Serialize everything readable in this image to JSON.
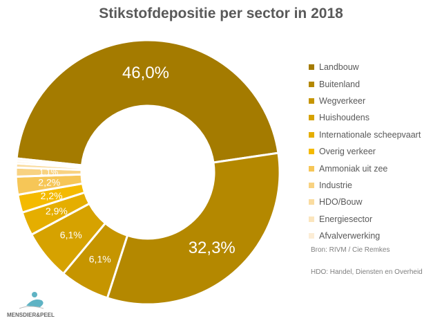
{
  "chart_data": {
    "type": "pie",
    "variant": "donut",
    "title": "Stikstofdepositie per sector in 2018",
    "legend_position": "right",
    "slices": [
      {
        "label": "Landbouw",
        "value": 46.0,
        "display": "46,0%",
        "color": "#a47b00"
      },
      {
        "label": "Buitenland",
        "value": 32.3,
        "display": "32,3%",
        "color": "#b48800"
      },
      {
        "label": "Wegverkeer",
        "value": 6.1,
        "display": "6,1%",
        "color": "#c69500"
      },
      {
        "label": "Huishoudens",
        "value": 6.1,
        "display": "6,1%",
        "color": "#d6a200"
      },
      {
        "label": "Internationale scheepvaart",
        "value": 2.9,
        "display": "2,9%",
        "color": "#e5ae00"
      },
      {
        "label": "Overig verkeer",
        "value": 2.2,
        "display": "2,2%",
        "color": "#f4ba00"
      },
      {
        "label": "Ammoniak uit zee",
        "value": 2.2,
        "display": "2,2%",
        "color": "#f6c657"
      },
      {
        "label": "Industrie",
        "value": 1.1,
        "display": "1,1%",
        "color": "#f8d281"
      },
      {
        "label": "HDO/Bouw",
        "value": 0.5,
        "display": "",
        "color": "#fadca0"
      },
      {
        "label": "Energiesector",
        "value": 0.3,
        "display": "",
        "color": "#fbe5bd"
      },
      {
        "label": "Afvalverwerking",
        "value": 0.3,
        "display": "",
        "color": "#fcedd6"
      }
    ]
  },
  "notes": {
    "source": "Bron: RIVM / Cie Remkes",
    "hdo": "HDO: Handel, Diensten en Overheid"
  },
  "logo": {
    "text": "MENSDIER&PEEL"
  }
}
